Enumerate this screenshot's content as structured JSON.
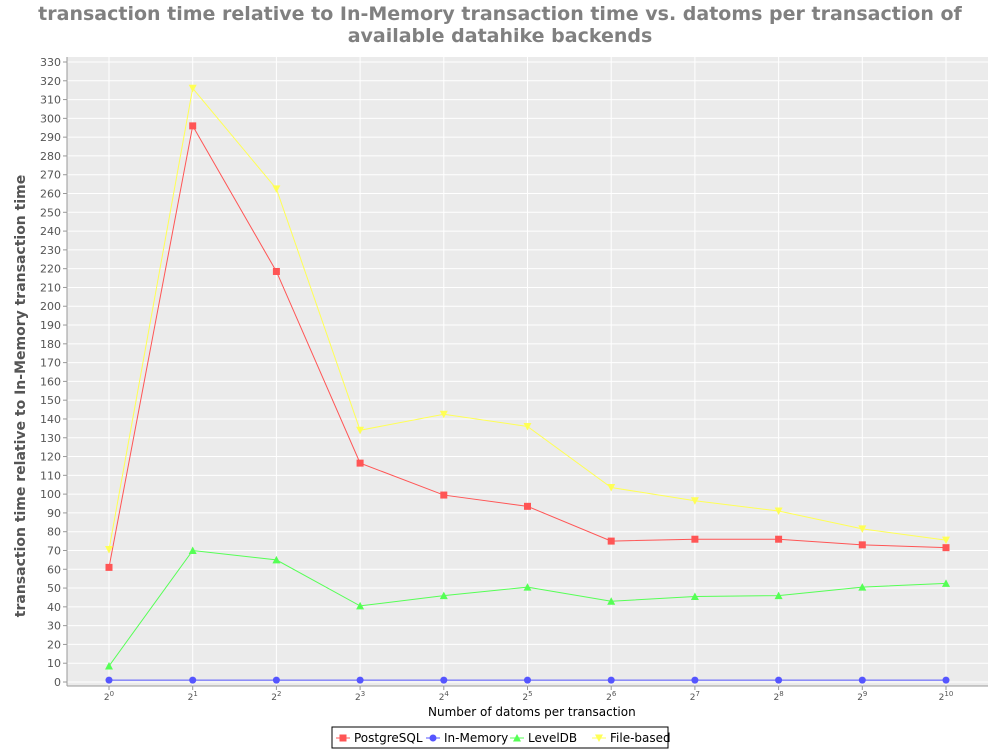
{
  "chart_data": {
    "type": "line",
    "title_line1": "transaction time relative to In-Memory transaction time vs. datoms per transaction of",
    "title_line2": "available datahike backends",
    "xlabel": "Number of datoms per transaction",
    "ylabel": "transaction time relative to In-Memory transaction time",
    "x_exponents": [
      "0",
      "1",
      "2",
      "3",
      "4",
      "5",
      "6",
      "7",
      "8",
      "9",
      "10"
    ],
    "x_base": "2",
    "ylim": [
      0,
      330
    ],
    "ytick_step": 10,
    "grid": true,
    "legend_position": "bottom",
    "series": [
      {
        "name": "PostgreSQL",
        "color": "#ff5555",
        "marker": "square",
        "values": [
          61,
          296,
          218.5,
          116.5,
          99.5,
          93.5,
          75,
          76,
          76,
          73,
          71.5
        ]
      },
      {
        "name": "In-Memory",
        "color": "#5555ff",
        "marker": "circle",
        "values": [
          1,
          1,
          1,
          1,
          1,
          1,
          1,
          1,
          1,
          1,
          1
        ]
      },
      {
        "name": "LevelDB",
        "color": "#55ff55",
        "marker": "triangle-up",
        "values": [
          8.5,
          70,
          65,
          40.5,
          46,
          50.5,
          43,
          45.5,
          46,
          50.5,
          52.5
        ]
      },
      {
        "name": "File-based",
        "color": "#ffff55",
        "marker": "triangle-down",
        "values": [
          70.5,
          316,
          262.5,
          134,
          142.5,
          136,
          103.5,
          96.5,
          91,
          81.5,
          75.5
        ]
      }
    ]
  }
}
